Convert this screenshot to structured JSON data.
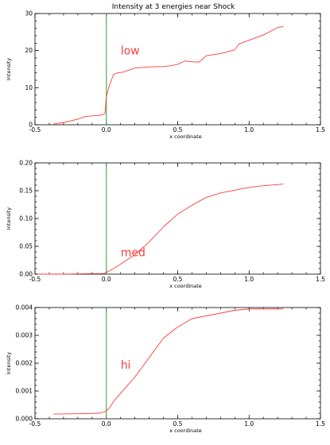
{
  "figure_title": "Intensity at 3 energies near Shock",
  "colors": {
    "curve": "#ff3c3c",
    "shock_line": "#2ca02c",
    "axes": "#000000",
    "label": "#ff3c3c"
  },
  "chart_data": [
    {
      "type": "line",
      "title": "Intensity at 3 energies near Shock",
      "xlabel": "x coordinate",
      "ylabel": "Intensity",
      "xlim": [
        -0.5,
        1.5
      ],
      "ylim": [
        0,
        30
      ],
      "xticks": [
        -0.5,
        0.0,
        0.5,
        1.0,
        1.5
      ],
      "xtick_labels": [
        "-0.5",
        "0.0",
        "0.5",
        "1.0",
        "1.5"
      ],
      "yticks": [
        0,
        10,
        20,
        30
      ],
      "ytick_labels": [
        "0",
        "10",
        "20",
        "30"
      ],
      "annotation": "low",
      "annotation_pos": [
        0.1,
        19
      ],
      "shock_x": 0.0,
      "series": [
        {
          "x": [
            -0.37,
            -0.3,
            -0.2,
            -0.15,
            -0.1,
            -0.05,
            -0.01,
            0.0,
            0.02,
            0.05,
            0.08,
            0.12,
            0.2,
            0.3,
            0.4,
            0.45,
            0.5,
            0.55,
            0.6,
            0.65,
            0.7,
            0.8,
            0.9,
            0.93,
            1.0,
            1.1,
            1.2,
            1.24
          ],
          "y": [
            0.2,
            0.6,
            1.5,
            2.2,
            2.4,
            2.5,
            3.0,
            7.5,
            10.5,
            13.5,
            14.0,
            14.2,
            15.3,
            15.6,
            15.7,
            15.9,
            16.3,
            17.2,
            17.0,
            16.9,
            18.6,
            19.2,
            20.2,
            21.8,
            22.8,
            24.2,
            26.2,
            26.5
          ]
        }
      ]
    },
    {
      "type": "line",
      "title": "",
      "xlabel": "x coordinate",
      "ylabel": "Intensity",
      "xlim": [
        -0.5,
        1.5
      ],
      "ylim": [
        0,
        0.2
      ],
      "xticks": [
        -0.5,
        0.0,
        0.5,
        1.0,
        1.5
      ],
      "xtick_labels": [
        "-0.5",
        "0.0",
        "0.5",
        "1.0",
        "1.5"
      ],
      "yticks": [
        0,
        0.05,
        0.1,
        0.15,
        0.2
      ],
      "ytick_labels": [
        "0.00",
        "0.05",
        "0.10",
        "0.15",
        "0.20"
      ],
      "annotation": "med",
      "annotation_pos": [
        0.1,
        0.032
      ],
      "shock_x": 0.0,
      "series": [
        {
          "x": [
            -0.48,
            -0.3,
            -0.1,
            -0.02,
            0.0,
            0.05,
            0.1,
            0.2,
            0.3,
            0.4,
            0.5,
            0.6,
            0.7,
            0.8,
            0.9,
            1.0,
            1.1,
            1.2,
            1.24
          ],
          "y": [
            0.0,
            0.0,
            0.001,
            0.001,
            0.003,
            0.01,
            0.018,
            0.035,
            0.058,
            0.085,
            0.108,
            0.124,
            0.138,
            0.146,
            0.151,
            0.156,
            0.159,
            0.161,
            0.162
          ]
        }
      ]
    },
    {
      "type": "line",
      "title": "",
      "xlabel": "x coordinate",
      "ylabel": "Intensity",
      "xlim": [
        -0.5,
        1.5
      ],
      "ylim": [
        0,
        0.004
      ],
      "xticks": [
        -0.5,
        0.0,
        0.5,
        1.0,
        1.5
      ],
      "xtick_labels": [
        "-0.5",
        "0.0",
        "0.5",
        "1.0",
        "1.5"
      ],
      "yticks": [
        0,
        0.001,
        0.002,
        0.003,
        0.004
      ],
      "ytick_labels": [
        "0.000",
        "0.001",
        "0.002",
        "0.003",
        "0.004"
      ],
      "annotation": "hi",
      "annotation_pos": [
        0.1,
        0.0018
      ],
      "shock_x": 0.0,
      "series": [
        {
          "x": [
            -0.37,
            -0.2,
            -0.05,
            -0.01,
            0.02,
            0.05,
            0.1,
            0.2,
            0.3,
            0.4,
            0.5,
            0.6,
            0.7,
            0.8,
            0.9,
            1.0,
            1.1,
            1.24
          ],
          "y": [
            0.00017,
            0.00018,
            0.0002,
            0.00025,
            0.00038,
            0.00062,
            0.00092,
            0.0015,
            0.0022,
            0.0029,
            0.0033,
            0.0036,
            0.0037,
            0.0038,
            0.0039,
            0.00395,
            0.00395,
            0.00395
          ]
        }
      ]
    }
  ]
}
